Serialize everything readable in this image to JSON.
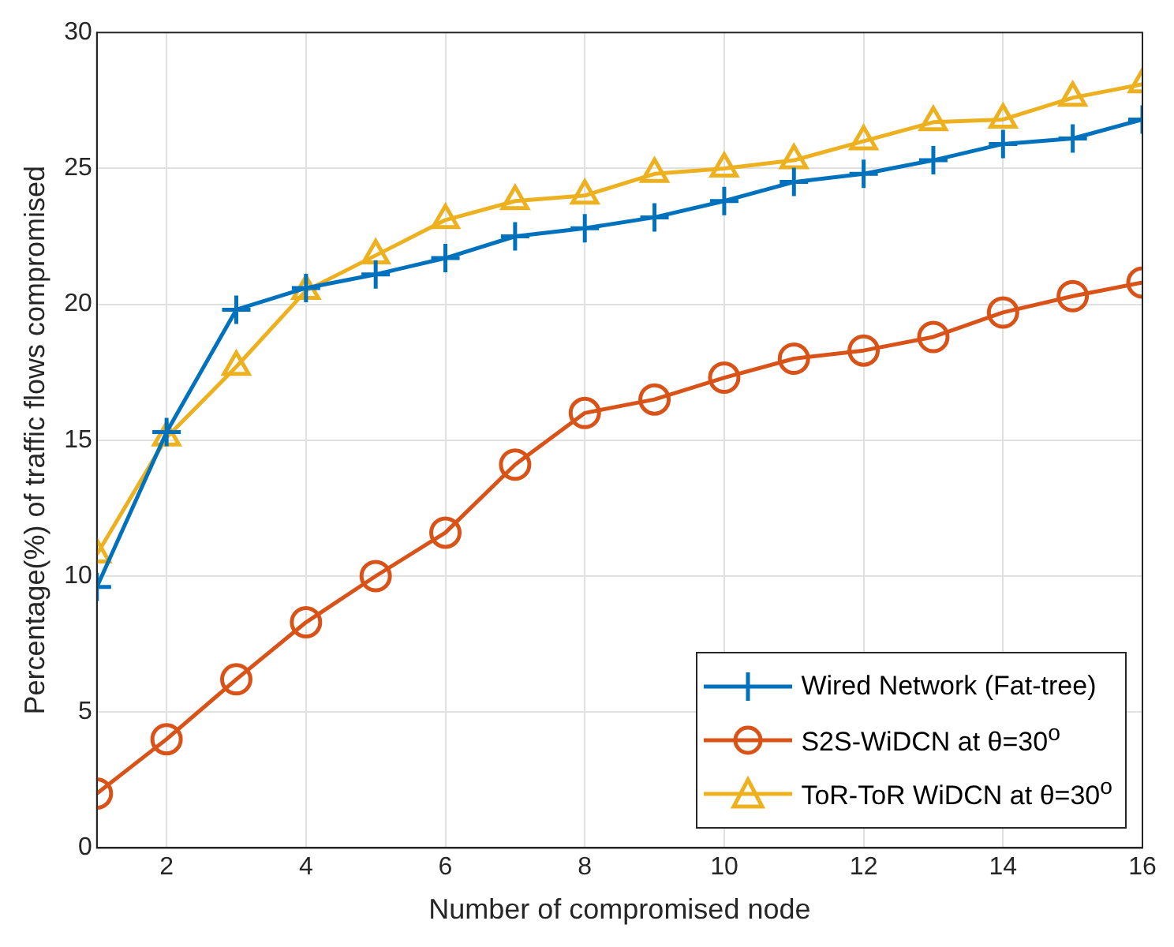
{
  "chart_data": {
    "type": "line",
    "xlabel": "Number of compromised node",
    "ylabel": "Percentage(%) of traffic flows compromised",
    "x": [
      1,
      2,
      3,
      4,
      5,
      6,
      7,
      8,
      9,
      10,
      11,
      12,
      13,
      14,
      15,
      16
    ],
    "series": [
      {
        "name": "Wired Network (Fat-tree)",
        "color": "#0072bd",
        "marker": "cross",
        "values": [
          9.6,
          15.3,
          19.8,
          20.6,
          21.1,
          21.7,
          22.5,
          22.8,
          23.2,
          23.8,
          24.5,
          24.8,
          25.3,
          25.9,
          26.1,
          26.8
        ]
      },
      {
        "name": "S2S-WiDCN  at θ=30$^{o}$",
        "color": "#d95319",
        "marker": "circle",
        "values": [
          2.0,
          4.0,
          6.2,
          8.3,
          10.0,
          11.6,
          14.1,
          16.0,
          16.5,
          17.3,
          18.0,
          18.3,
          18.8,
          19.7,
          20.3,
          20.8
        ]
      },
      {
        "name": "ToR-ToR WiDCN  at θ=30$^{o}$",
        "color": "#edb120",
        "marker": "triangle",
        "values": [
          10.8,
          15.1,
          17.7,
          20.5,
          21.8,
          23.1,
          23.8,
          24.0,
          24.8,
          25.0,
          25.3,
          26.0,
          26.7,
          26.8,
          27.6,
          28.1
        ]
      }
    ],
    "xlim": [
      1,
      16
    ],
    "xticks": [
      2,
      4,
      6,
      8,
      10,
      12,
      14,
      16
    ],
    "ylim": [
      0,
      30
    ],
    "yticks": [
      0,
      5,
      10,
      15,
      20,
      25,
      30
    ],
    "grid": true,
    "legend": "bottom right",
    "line_style": "solid"
  }
}
